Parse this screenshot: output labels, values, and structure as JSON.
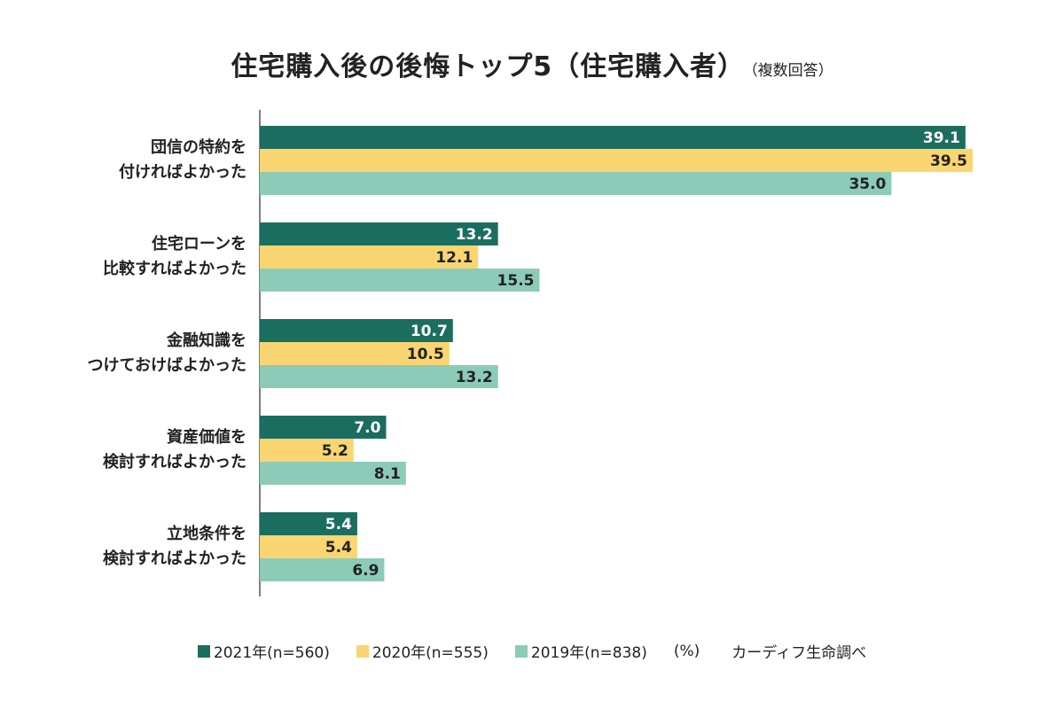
{
  "chart_data": {
    "type": "bar",
    "orientation": "horizontal",
    "title": "住宅購入後の後悔トップ5（住宅購入者）",
    "subtitle": "（複数回答）",
    "categories": [
      [
        "団信の特約を",
        "付ければよかった"
      ],
      [
        "住宅ローンを",
        "比較すればよかった"
      ],
      [
        "金融知識を",
        "つけておけばよかった"
      ],
      [
        "資産価値を",
        "検討すればよかった"
      ],
      [
        "立地条件を",
        "検討すればよかった"
      ]
    ],
    "series": [
      {
        "name": "2021年(n=560)",
        "color": "#1b6e5f",
        "label_color": "#ffffff",
        "values": [
          39.1,
          13.2,
          10.7,
          7.0,
          5.4
        ]
      },
      {
        "name": "2020年(n=555)",
        "color": "#f9d672",
        "label_color": "#222222",
        "values": [
          39.5,
          12.1,
          10.5,
          5.2,
          5.4
        ]
      },
      {
        "name": "2019年(n=838)",
        "color": "#8dcbb9",
        "label_color": "#222222",
        "values": [
          35.0,
          15.5,
          13.2,
          8.1,
          6.9
        ]
      }
    ],
    "xlim": [
      0,
      39.5
    ],
    "grid": false,
    "legend_position": "bottom",
    "unit": "(%)",
    "source": "カーディフ生命調べ"
  }
}
